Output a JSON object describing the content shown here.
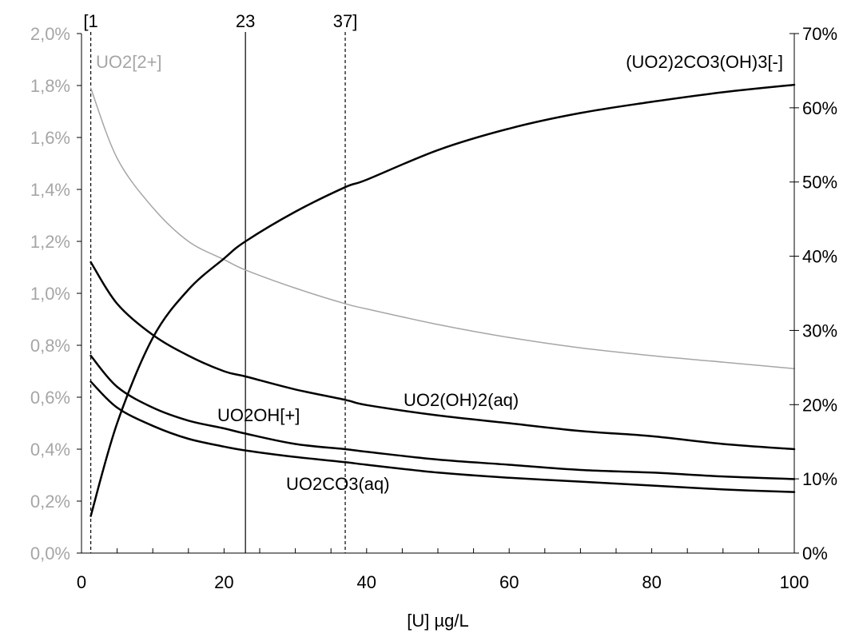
{
  "chart_data": {
    "type": "line",
    "title": "",
    "xlabel": "[U] µg/L",
    "ylabel_left": "",
    "ylabel_right": "",
    "xlim": [
      0,
      100
    ],
    "ylim_left": [
      0.0,
      2.0
    ],
    "ylim_right": [
      0,
      70
    ],
    "x_ticks": [
      "0",
      "20",
      "40",
      "60",
      "80",
      "100"
    ],
    "y_left_ticks": [
      "0,0%",
      "0,2%",
      "0,4%",
      "0,6%",
      "0,8%",
      "1,0%",
      "1,2%",
      "1,4%",
      "1,6%",
      "1,8%",
      "2,0%"
    ],
    "y_right_ticks": [
      "0%",
      "10%",
      "20%",
      "30%",
      "40%",
      "50%",
      "60%",
      "70%"
    ],
    "grid": false,
    "colors": {
      "dark": "#000000",
      "gray": "#a6a6a6"
    },
    "vertical_markers": [
      {
        "x": 1.3,
        "label": "[1",
        "style": "dashed"
      },
      {
        "x": 23,
        "label": "23",
        "style": "solid"
      },
      {
        "x": 37,
        "label": "37]",
        "style": "dashed"
      }
    ],
    "x": [
      1.3,
      5,
      10,
      15,
      20,
      23,
      30,
      37,
      40,
      50,
      60,
      70,
      80,
      90,
      100
    ],
    "series": [
      {
        "name": "UO2[2+]",
        "axis": "left",
        "color": "#a6a6a6",
        "values": [
          1.79,
          1.52,
          1.33,
          1.2,
          1.13,
          1.09,
          1.02,
          0.96,
          0.94,
          0.88,
          0.83,
          0.79,
          0.76,
          0.735,
          0.71
        ]
      },
      {
        "name": "(UO2)2CO3(OH)3[-]",
        "axis": "right",
        "color": "#000000",
        "values": [
          5.0,
          17.5,
          29.0,
          35.5,
          39.7,
          42.0,
          46.0,
          49.3,
          50.3,
          54.3,
          57.2,
          59.3,
          60.8,
          62.1,
          63.1
        ]
      },
      {
        "name": "UO2(OH)2(aq)",
        "axis": "left",
        "color": "#000000",
        "values": [
          1.12,
          0.96,
          0.84,
          0.76,
          0.7,
          0.68,
          0.63,
          0.59,
          0.57,
          0.53,
          0.5,
          0.47,
          0.45,
          0.42,
          0.4
        ]
      },
      {
        "name": "UO2OH[+]",
        "axis": "left",
        "color": "#000000",
        "values": [
          0.76,
          0.64,
          0.56,
          0.51,
          0.48,
          0.46,
          0.42,
          0.4,
          0.39,
          0.36,
          0.34,
          0.32,
          0.31,
          0.295,
          0.285
        ]
      },
      {
        "name": "UO2CO3(aq)",
        "axis": "left",
        "color": "#000000",
        "values": [
          0.66,
          0.56,
          0.49,
          0.44,
          0.41,
          0.395,
          0.37,
          0.35,
          0.34,
          0.31,
          0.29,
          0.275,
          0.26,
          0.245,
          0.235
        ]
      }
    ]
  }
}
